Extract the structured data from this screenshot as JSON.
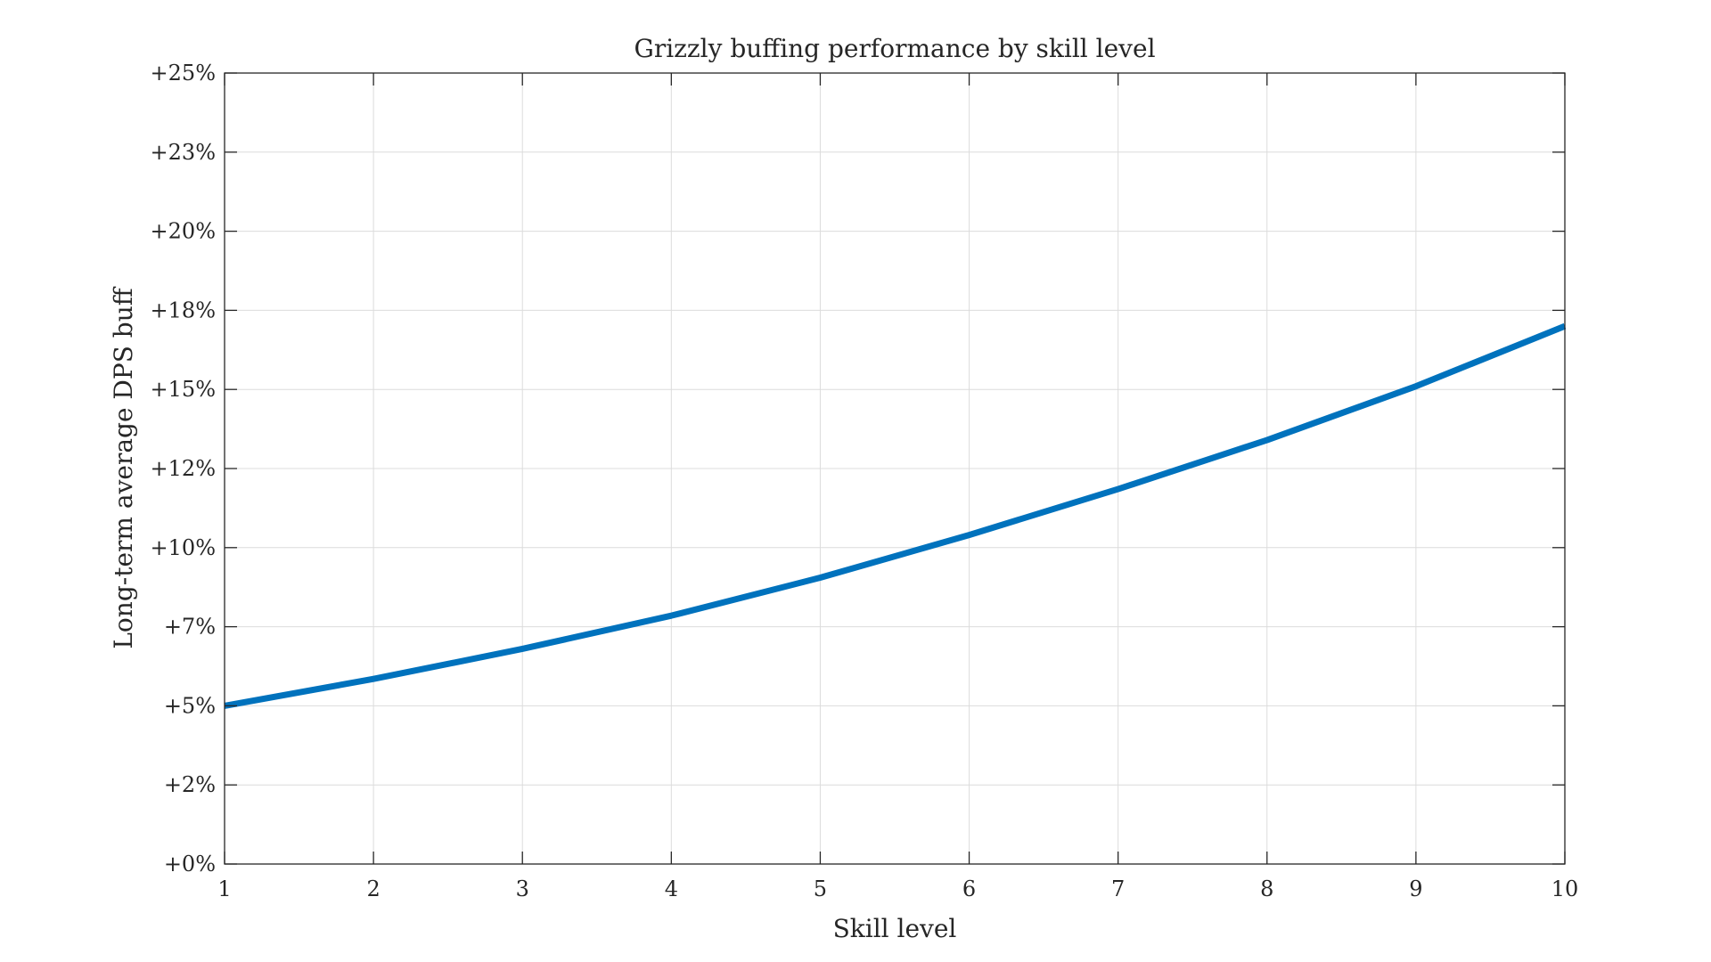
{
  "chart_data": {
    "type": "line",
    "title": "Grizzly buffing performance by skill level",
    "xlabel": "Skill level",
    "ylabel": "Long-term average DPS buff",
    "xlim": [
      1,
      10
    ],
    "ylim": [
      0,
      25
    ],
    "grid": true,
    "x_ticks": [
      "1",
      "2",
      "3",
      "4",
      "5",
      "6",
      "7",
      "8",
      "9",
      "10"
    ],
    "y_tick_values": [
      0,
      2.5,
      5,
      7.5,
      10,
      12.5,
      15,
      17.5,
      20,
      22.5,
      25
    ],
    "y_tick_labels": [
      "+0%",
      "+2%",
      "+5%",
      "+7%",
      "+10%",
      "+12%",
      "+15%",
      "+18%",
      "+20%",
      "+23%",
      "+25%"
    ],
    "x": [
      1,
      2,
      3,
      4,
      5,
      6,
      7,
      8,
      9,
      10
    ],
    "series": [
      {
        "values": [
          5.0,
          5.85,
          6.8,
          7.85,
          9.05,
          10.4,
          11.85,
          13.4,
          15.1,
          17.0
        ],
        "color": "#0072BD"
      }
    ]
  }
}
